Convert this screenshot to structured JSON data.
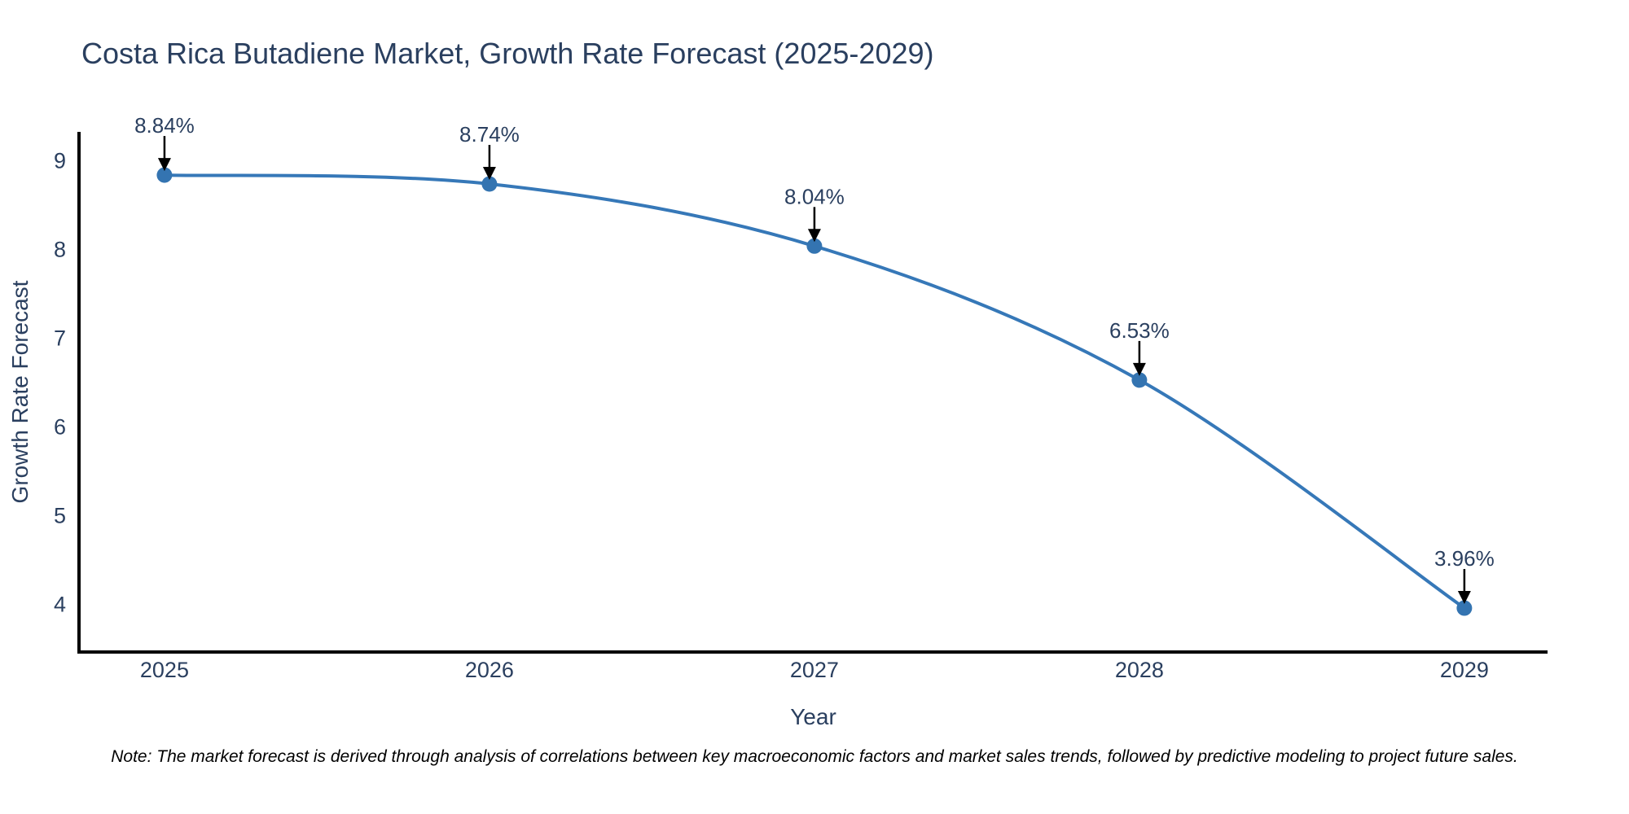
{
  "title": "Costa Rica Butadiene Market, Growth Rate Forecast (2025-2029)",
  "note": "Note: The market forecast is derived through analysis of correlations between key macroeconomic factors and market sales trends, followed by predictive modeling to project future sales.",
  "chart_data": {
    "type": "line",
    "title": "Costa Rica Butadiene Market, Growth Rate Forecast (2025-2029)",
    "xlabel": "Year",
    "ylabel": "Growth Rate Forecast",
    "x": [
      2025,
      2026,
      2027,
      2028,
      2029
    ],
    "series": [
      {
        "name": "Growth Rate Forecast",
        "values": [
          8.84,
          8.74,
          8.04,
          6.53,
          3.96
        ]
      }
    ],
    "point_labels": [
      "8.84%",
      "8.74%",
      "8.04%",
      "6.53%",
      "3.96%"
    ],
    "xticks": [
      2025,
      2026,
      2027,
      2028,
      2029
    ],
    "yticks": [
      4,
      5,
      6,
      7,
      8,
      9
    ],
    "xlim": [
      2024.737,
      2029.256
    ],
    "ylim": [
      3.465,
      9.327
    ],
    "grid": false,
    "legend": "none",
    "line_shape": "spline",
    "colors": {
      "line": "#3678b8",
      "marker": "#3474b1",
      "axis": "#000000",
      "text": "#2a3f5f",
      "annotation_arrow": "#000000",
      "background": "#ffffff"
    }
  }
}
